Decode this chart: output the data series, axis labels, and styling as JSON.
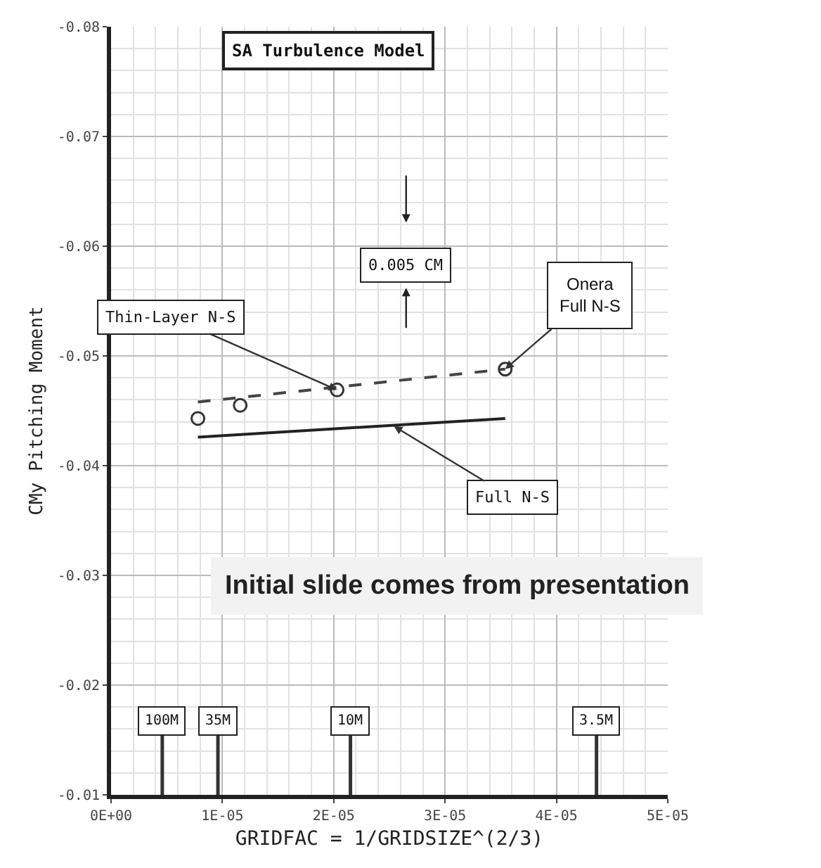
{
  "chart_data": {
    "type": "line",
    "xlabel": "GRIDFAC = 1/GRIDSIZE^(2/3)",
    "ylabel": "CMy Pitching Moment",
    "xlim": [
      0,
      5e-05
    ],
    "xticks": [
      {
        "value": 0,
        "label": "0E+00"
      },
      {
        "value": 1e-05,
        "label": "1E-05"
      },
      {
        "value": 2e-05,
        "label": "2E-05"
      },
      {
        "value": 3e-05,
        "label": "3E-05"
      },
      {
        "value": 4e-05,
        "label": "4E-05"
      },
      {
        "value": 5e-05,
        "label": "5E-05"
      }
    ],
    "ylim": [
      -0.01,
      -0.08
    ],
    "yticks": [
      -0.08,
      -0.07,
      -0.06,
      -0.05,
      -0.04,
      -0.03,
      -0.02,
      -0.01
    ],
    "grid": true,
    "series": [
      {
        "type": "scatter",
        "marker": "circle",
        "color": "#333333",
        "x": [
          7.8e-06,
          1.16e-05,
          2.03e-05,
          3.54e-05
        ],
        "values": [
          -0.0443,
          -0.0455,
          -0.0469,
          -0.0488
        ]
      },
      {
        "type": "line",
        "line_style": "dashed",
        "color": "#444444",
        "x": [
          7.8e-06,
          3.54e-05
        ],
        "values": [
          -0.0458,
          -0.0488
        ]
      },
      {
        "type": "line",
        "line_style": "solid",
        "color": "#222222",
        "x": [
          7.8e-06,
          3.54e-05
        ],
        "values": [
          -0.0426,
          -0.0443
        ]
      }
    ],
    "annotations": [
      "SA Turbulence Model",
      {
        "text": "Thin-Layer N-S",
        "x": 2.03e-05,
        "y": -0.0469
      },
      {
        "text": "Onera\nFull N-S",
        "x": 3.54e-05,
        "y": -0.0488
      },
      {
        "text": "Full N-S",
        "x": 2.54e-05,
        "y": -0.0436
      },
      "0.005 CM",
      "Initial slide comes from presentation"
    ],
    "ref_lines": [
      {
        "axis": "x",
        "value": 4.6e-06,
        "label": "100M"
      },
      {
        "axis": "x",
        "value": 9.6e-06,
        "label": "35M"
      },
      {
        "axis": "x",
        "value": 2.15e-05,
        "label": "10M"
      },
      {
        "axis": "x",
        "value": 4.36e-05,
        "label": "3.5M"
      }
    ]
  }
}
